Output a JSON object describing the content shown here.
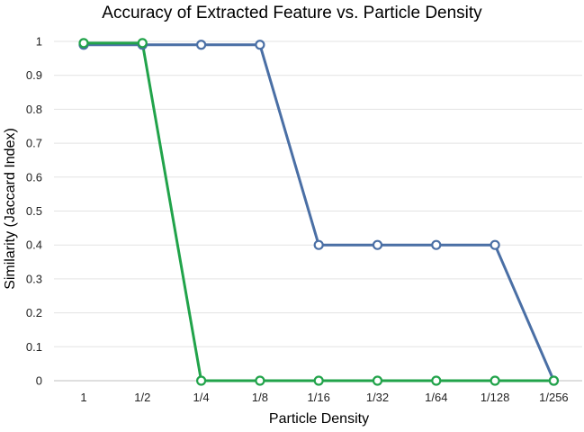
{
  "chart_data": {
    "type": "line",
    "title": "Accuracy of Extracted Feature vs. Particle Density",
    "xlabel": "Particle Density",
    "ylabel": "Similarity (Jaccard Index)",
    "categories": [
      "1",
      "1/2",
      "1/4",
      "1/8",
      "1/16",
      "1/32",
      "1/64",
      "1/128",
      "1/256"
    ],
    "y_ticks": [
      "0",
      "0.1",
      "0.2",
      "0.3",
      "0.4",
      "0.5",
      "0.6",
      "0.7",
      "0.8",
      "0.9",
      "1"
    ],
    "ylim": [
      0,
      1
    ],
    "grid": true,
    "legend": "none",
    "series": [
      {
        "color": "#4a6fa5",
        "values": [
          0.99,
          0.99,
          0.99,
          0.99,
          0.4,
          0.4,
          0.4,
          0.4,
          0.0
        ]
      },
      {
        "color": "#21a34a",
        "values": [
          0.995,
          0.995,
          0.0,
          0.0,
          0.0,
          0.0,
          0.0,
          0.0,
          0.0
        ]
      }
    ]
  }
}
